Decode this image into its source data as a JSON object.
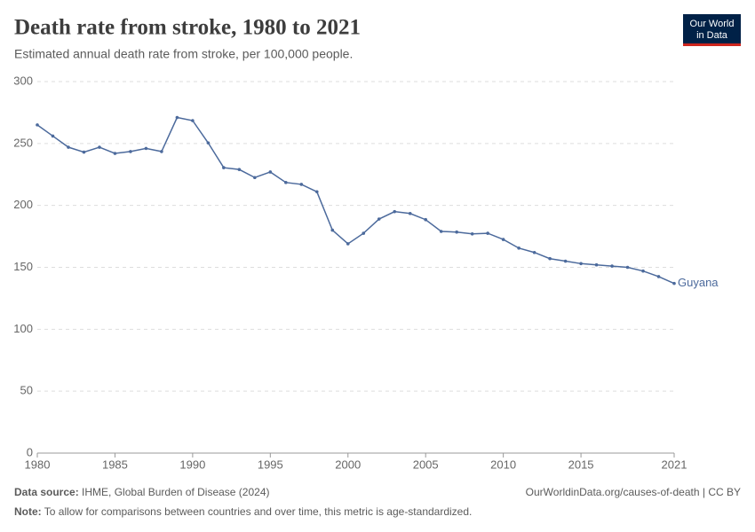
{
  "chart_data": {
    "type": "line",
    "title": "Death rate from stroke, 1980 to 2021",
    "subtitle": "Estimated annual death rate from stroke, per 100,000 people.",
    "x": [
      1980,
      1981,
      1982,
      1983,
      1984,
      1985,
      1986,
      1987,
      1988,
      1989,
      1990,
      1991,
      1992,
      1993,
      1994,
      1995,
      1996,
      1997,
      1998,
      1999,
      2000,
      2001,
      2002,
      2003,
      2004,
      2005,
      2006,
      2007,
      2008,
      2009,
      2010,
      2011,
      2012,
      2013,
      2014,
      2015,
      2016,
      2017,
      2018,
      2019,
      2020,
      2021
    ],
    "series": [
      {
        "name": "Guyana",
        "color": "#4c6a9c",
        "values": [
          265,
          256,
          247,
          243,
          247,
          242,
          243.5,
          246,
          243.5,
          271,
          268.5,
          250.5,
          230.5,
          229,
          222.5,
          227,
          218.5,
          217,
          211,
          180,
          169,
          177.5,
          189,
          195,
          193.5,
          188.5,
          179,
          178.5,
          177,
          177.5,
          172.5,
          165.5,
          162,
          157,
          155,
          153,
          152,
          151,
          150,
          147,
          142.5,
          137
        ]
      }
    ],
    "xlim": [
      1980,
      2021
    ],
    "xticks": [
      1980,
      1985,
      1990,
      1995,
      2000,
      2005,
      2010,
      2015,
      2021
    ],
    "ylim": [
      0,
      300
    ],
    "yticks": [
      0,
      50,
      100,
      150,
      200,
      250,
      300
    ],
    "grid": true,
    "source_label": "Data source:",
    "source": "IHME, Global Burden of Disease (2024)",
    "url": "OurWorldinData.org/causes-of-death | CC BY",
    "note_label": "Note:",
    "note": "To allow for comparisons between countries and over time, this metric is age-standardized."
  },
  "logo": {
    "line1": "Our World",
    "line2": "in Data"
  }
}
